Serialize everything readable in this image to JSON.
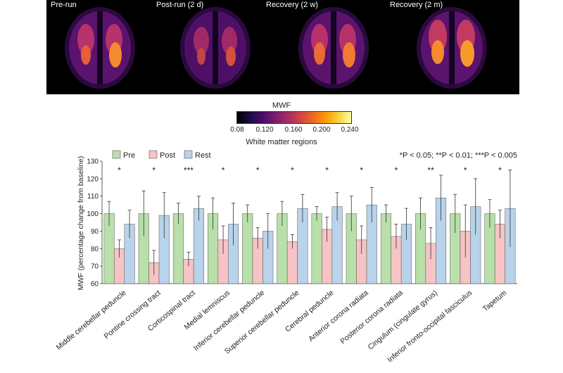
{
  "panels": [
    {
      "label": "Pre-run"
    },
    {
      "label": "Post-run (2 d)"
    },
    {
      "label": "Recovery (2 w)"
    },
    {
      "label": "Recovery (2 m)"
    }
  ],
  "colorbar": {
    "title": "MWF",
    "ticks": [
      "0.08",
      "0.120",
      "0.160",
      "0.200",
      "0.240"
    ],
    "subtitle": "White matter regions"
  },
  "significance_note": "*P < 0.05; **P < 0.01; ***P < 0.005",
  "colors": {
    "pre": "#b9dfaa",
    "post": "#f6c4c4",
    "rest": "#b8d3ea",
    "edge": "#555555"
  },
  "chart_data": {
    "type": "bar",
    "ylabel": "MWF (percentage change from baseline)",
    "ylim": [
      60,
      130
    ],
    "yticks": [
      60,
      70,
      80,
      90,
      100,
      110,
      120,
      130
    ],
    "legend": {
      "placement": "top-left"
    },
    "categories": [
      "Middle cerebellar peduncle",
      "Pontine crossing tract",
      "Corticospinal tract",
      "Medial lemniscus",
      "Inferior cerebellar peduncle",
      "Superior cerebellar peduncle",
      "Cerebral peduncle",
      "Anterior corona radiata",
      "Posterior corona radiata",
      "Cingulum (cingulate gyrus)",
      "Inferior fronto-occipital fasciculus",
      "Tapetum"
    ],
    "series": [
      {
        "name": "Pre",
        "values": [
          100,
          100,
          100,
          100,
          100,
          100,
          100,
          100,
          100,
          100,
          100,
          100
        ],
        "errors": [
          7,
          13,
          6,
          9,
          5,
          7,
          4,
          10,
          5,
          9,
          11,
          8
        ]
      },
      {
        "name": "Post",
        "values": [
          80,
          72,
          74,
          85,
          86,
          84,
          91,
          85,
          87,
          83,
          90,
          94
        ],
        "errors": [
          5,
          7,
          4,
          8,
          6,
          4,
          7,
          8,
          7,
          9,
          15,
          8
        ]
      },
      {
        "name": "Rest",
        "values": [
          94,
          99,
          103,
          94,
          90,
          103,
          104,
          105,
          94,
          109,
          104,
          103
        ],
        "errors": [
          8,
          13,
          7,
          12,
          10,
          8,
          8,
          10,
          9,
          13,
          16,
          22
        ]
      }
    ],
    "significance": [
      "*",
      "*",
      "***",
      "*",
      "*",
      "*",
      "*",
      "*",
      "*",
      "**",
      "*",
      "*"
    ]
  }
}
